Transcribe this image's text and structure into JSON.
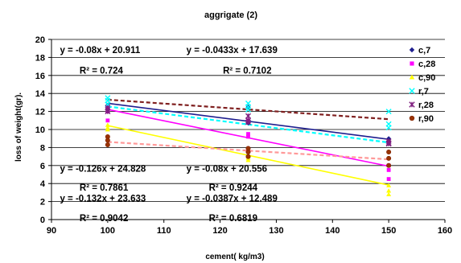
{
  "chart_data": {
    "type": "scatter",
    "title": "aggrigate (2)",
    "xlabel": "cement( kg/m3)",
    "ylabel": "loss of weight(gr).",
    "xlim": [
      90,
      160
    ],
    "ylim": [
      0,
      20
    ],
    "x_ticks": [
      90,
      100,
      110,
      120,
      130,
      140,
      150,
      160
    ],
    "y_ticks": [
      0,
      2,
      4,
      6,
      8,
      10,
      12,
      14,
      16,
      18,
      20
    ],
    "x_tick_labels": [
      "90",
      "100",
      "110",
      "120",
      "130",
      "140",
      "150",
      "160"
    ],
    "y_tick_labels": [
      "0",
      "2",
      "4",
      "6",
      "8",
      "10",
      "12",
      "14",
      "16",
      "18",
      "20"
    ],
    "legend_position": "right",
    "series": [
      {
        "name": "c,7",
        "color": "#1F1F8F",
        "marker": "diamond",
        "points": [
          [
            100,
            12.7
          ],
          [
            100,
            12.3
          ],
          [
            125,
            12.5
          ],
          [
            125,
            11.0
          ],
          [
            125,
            10.7
          ],
          [
            150,
            9.0
          ],
          [
            150,
            8.7
          ],
          [
            150,
            8.5
          ]
        ],
        "trend": {
          "slope": -0.08,
          "intercept": 20.911,
          "color": "#1F1F8F",
          "dash": false
        }
      },
      {
        "name": "c,28",
        "color": "#FF00FF",
        "marker": "square",
        "points": [
          [
            100,
            12.5
          ],
          [
            100,
            11.0
          ],
          [
            100,
            12.0
          ],
          [
            125,
            11.0
          ],
          [
            125,
            9.5
          ],
          [
            125,
            9.2
          ],
          [
            150,
            6.0
          ],
          [
            150,
            5.5
          ],
          [
            150,
            4.5
          ]
        ],
        "trend": {
          "slope": -0.126,
          "intercept": 24.828,
          "color": "#FF00FF",
          "dash": false
        }
      },
      {
        "name": "c,90",
        "color": "#FFFF00",
        "marker": "triangle",
        "points": [
          [
            100,
            10.5
          ],
          [
            100,
            10.0
          ],
          [
            100,
            10.2
          ],
          [
            125,
            7.0
          ],
          [
            125,
            6.6
          ],
          [
            125,
            6.8
          ],
          [
            150,
            3.8
          ],
          [
            150,
            3.2
          ],
          [
            150,
            2.8
          ]
        ],
        "trend": {
          "slope": -0.132,
          "intercept": 23.633,
          "color": "#FFFF00",
          "dash": false
        }
      },
      {
        "name": "r,7",
        "color": "#00FFFF",
        "marker": "x",
        "points": [
          [
            100,
            13.5
          ],
          [
            100,
            13.2
          ],
          [
            100,
            12.8
          ],
          [
            125,
            12.9
          ],
          [
            125,
            12.5
          ],
          [
            125,
            12.2
          ],
          [
            150,
            12.0
          ],
          [
            150,
            10.6
          ],
          [
            150,
            10.2
          ]
        ],
        "trend": {
          "slope": -0.08,
          "intercept": 20.556,
          "color": "#00FFFF",
          "dash": true
        }
      },
      {
        "name": "r,28",
        "color": "#7F1F7F",
        "marker": "star",
        "points": [
          [
            100,
            12.4
          ],
          [
            100,
            12.0
          ],
          [
            100,
            12.2
          ],
          [
            125,
            11.5
          ],
          [
            125,
            10.8
          ],
          [
            125,
            11.0
          ],
          [
            150,
            8.7
          ],
          [
            150,
            8.4
          ],
          [
            150,
            8.5
          ]
        ],
        "trend": {
          "slope": -0.0433,
          "intercept": 17.639,
          "color": "#7F1F1F",
          "dash": true
        }
      },
      {
        "name": "r,90",
        "color": "#993300",
        "marker": "circle",
        "points": [
          [
            100,
            9.2
          ],
          [
            100,
            8.8
          ],
          [
            100,
            8.3
          ],
          [
            125,
            7.9
          ],
          [
            125,
            7.5
          ],
          [
            125,
            7.0
          ],
          [
            150,
            7.5
          ],
          [
            150,
            6.8
          ],
          [
            150,
            6.0
          ]
        ],
        "trend": {
          "slope": -0.0387,
          "intercept": 12.489,
          "color": "#FF9999",
          "dash": true
        }
      }
    ],
    "annotations": [
      {
        "text": "y = -0.08x + 20.911",
        "x": 91.5,
        "y": 18.5
      },
      {
        "text": "R² = 0.724",
        "x": 95.0,
        "y": 16.2
      },
      {
        "text": "y = -0.0433x + 17.639",
        "x": 114.0,
        "y": 18.5
      },
      {
        "text": "R² = 0.7102",
        "x": 120.5,
        "y": 16.2
      },
      {
        "text": "y = -0.126x + 24.828",
        "x": 91.5,
        "y": 5.3
      },
      {
        "text": "R² = 0.7861",
        "x": 95.0,
        "y": 3.2
      },
      {
        "text": "y = -0.08x + 20.556",
        "x": 114.0,
        "y": 5.3
      },
      {
        "text": "R² = 0.9244",
        "x": 118.0,
        "y": 3.2
      },
      {
        "text": "y = -0.132x + 23.633",
        "x": 91.5,
        "y": 2.0
      },
      {
        "text": "R² = 0.9042",
        "x": 95.0,
        "y": -0.2
      },
      {
        "text": "y = -0.0387x + 12.489",
        "x": 114.0,
        "y": 2.0
      },
      {
        "text": "R² = 0.6819",
        "x": 118.0,
        "y": -0.2
      }
    ]
  }
}
